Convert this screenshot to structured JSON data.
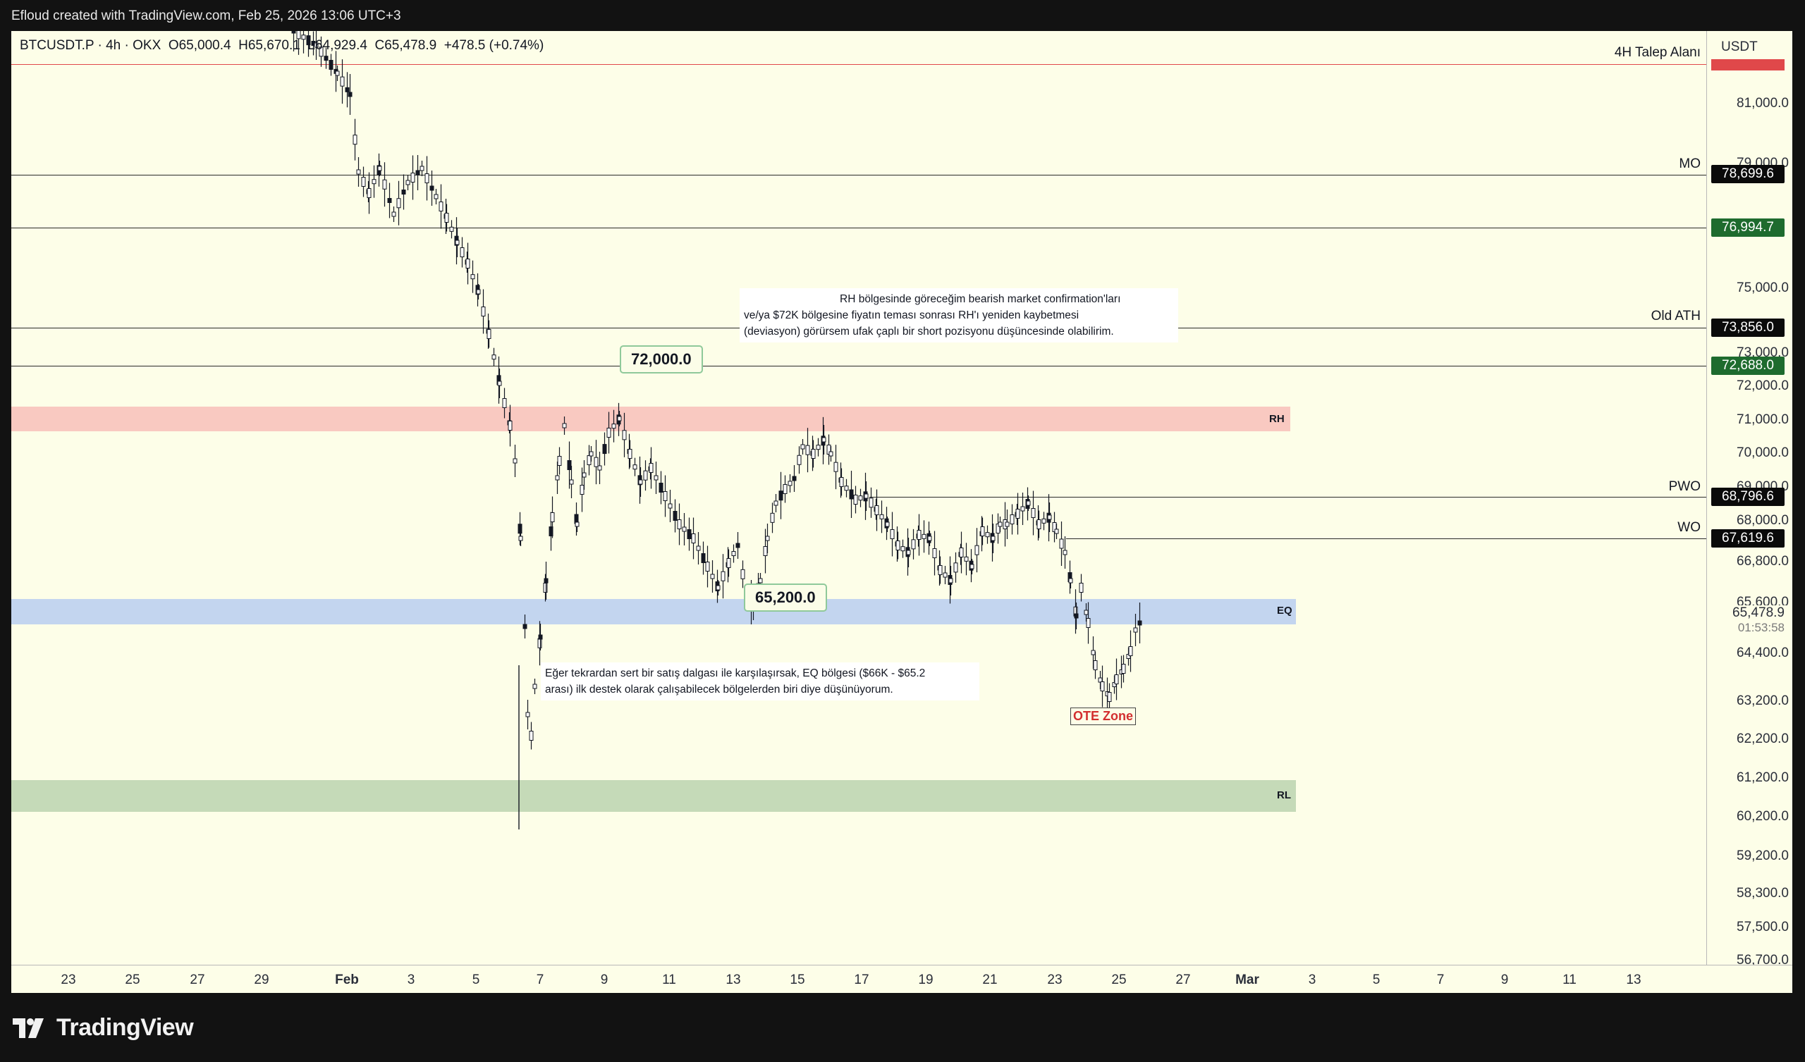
{
  "credit": "Efloud created with TradingView.com, Feb 25, 2026 13:06 UTC+3",
  "legend": {
    "symbol": "BTCUSDT.P · 4h · OKX",
    "open": "O65,000.4",
    "high": "H65,670.1",
    "low": "L64,929.4",
    "close": "C65,478.9",
    "change": "+478.5 (+0.74%)"
  },
  "price_axis": {
    "currency": "USDT",
    "labels": [
      "81,000.0",
      "79,000.0",
      "75,000.0",
      "73,000.0",
      "72,000.0",
      "71,000.0",
      "70,000.0",
      "69,000.0",
      "68,000.0",
      "66,800.0",
      "65,600.0",
      "64,400.0",
      "63,200.0",
      "62,200.0",
      "61,200.0",
      "60,200.0",
      "59,200.0",
      "58,300.0",
      "57,500.0",
      "56,700.0"
    ],
    "tags": [
      {
        "value": "78,699.6",
        "style": "black"
      },
      {
        "value": "76,994.7",
        "style": "green"
      },
      {
        "value": "73,856.0",
        "style": "black"
      },
      {
        "value": "72,688.0",
        "style": "green"
      },
      {
        "value": "68,796.6",
        "style": "black"
      },
      {
        "value": "67,619.6",
        "style": "black"
      }
    ],
    "last_price": "65,478.9",
    "countdown": "01:53:58"
  },
  "time_axis": {
    "labels": [
      "23",
      "25",
      "27",
      "29",
      "Feb",
      "3",
      "5",
      "7",
      "9",
      "11",
      "13",
      "15",
      "17",
      "19",
      "21",
      "23",
      "25",
      "27",
      "Mar",
      "3",
      "5",
      "7",
      "9",
      "11",
      "13"
    ]
  },
  "levels": {
    "talep": "4H Talep Alanı",
    "mo": "MO",
    "old_ath": "Old ATH",
    "pwo": "PWO",
    "wo": "WO"
  },
  "zones": {
    "rh": "RH",
    "eq": "EQ",
    "rl": "RL",
    "colors": {
      "rh": "#f9c9c1",
      "eq": "#c3d5ef",
      "rl": "#c5dab8"
    }
  },
  "callouts": {
    "high": "72,000.0",
    "low": "65,200.0"
  },
  "notes": {
    "rh_line1": "RH bölgesinde göreceğim bearish market confirmation'ları",
    "rh_line2": "ve/ya $72K bölgesine fiyatın teması sonrası RH'ı yeniden kaybetmesi",
    "rh_line3": "(deviasyon) görürsem ufak çaplı bir short pozisyonu düşüncesinde olabilirim.",
    "eq_line1": "Eğer tekrardan sert bir satış dalgası ile karşılaşırsak, EQ bölgesi ($66K - $65.2",
    "eq_line2": "arası) ilk destek olarak çalışabilecek bölgelerden biri diye düşünüyorum."
  },
  "ote": "OTE Zone",
  "brand": "TradingView",
  "icons": [
    "tradingview-logo-icon",
    "lightning-bolt-icon"
  ]
}
